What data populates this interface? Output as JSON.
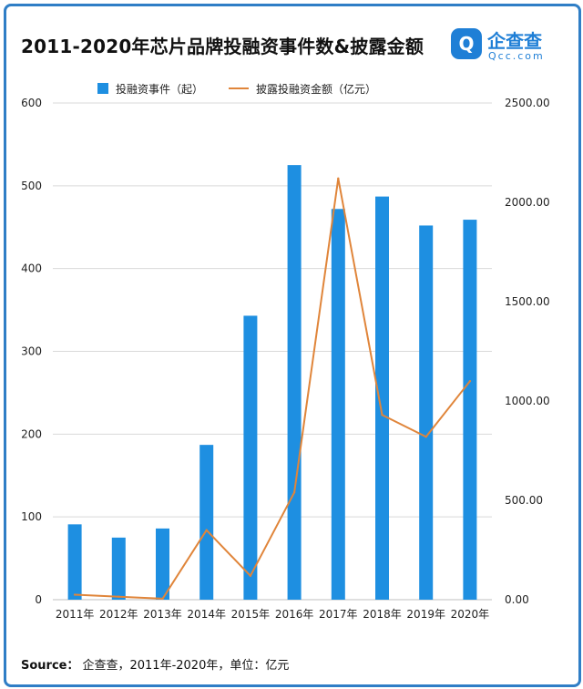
{
  "title": "2011-2020年芯片品牌投融资事件数&披露金额",
  "logo": {
    "name": "企查查",
    "sub": "Qcc.com",
    "glyph": "Q"
  },
  "source": {
    "label": "Source：",
    "text": "企查查，2011年-2020年，单位：亿元"
  },
  "colors": {
    "bar": "#1e8fe1",
    "line": "#e0853a",
    "grid": "#d9d9d9",
    "frame": "#2f7ec6"
  },
  "chart_data": {
    "type": "bar",
    "title": "2011-2020年芯片品牌投融资事件数&披露金额",
    "categories": [
      "2011年",
      "2012年",
      "2013年",
      "2014年",
      "2015年",
      "2016年",
      "2017年",
      "2018年",
      "2019年",
      "2020年"
    ],
    "series": [
      {
        "name": "投融资事件（起）",
        "type": "bar",
        "axis": "left",
        "values": [
          91,
          75,
          86,
          187,
          343,
          525,
          472,
          487,
          452,
          459
        ]
      },
      {
        "name": "披露投融资金额（亿元）",
        "type": "line",
        "axis": "right",
        "values": [
          25,
          15,
          5,
          350,
          120,
          540,
          2120,
          930,
          820,
          1100
        ]
      }
    ],
    "ylim_left": [
      0,
      600
    ],
    "yticks_left": [
      "0",
      "100",
      "200",
      "300",
      "400",
      "500",
      "600"
    ],
    "ylim_right": [
      0,
      2500
    ],
    "yticks_right": [
      "0.00",
      "500.00",
      "1000.00",
      "1500.00",
      "2000.00",
      "2500.00"
    ],
    "grid": true,
    "legend": "top"
  }
}
